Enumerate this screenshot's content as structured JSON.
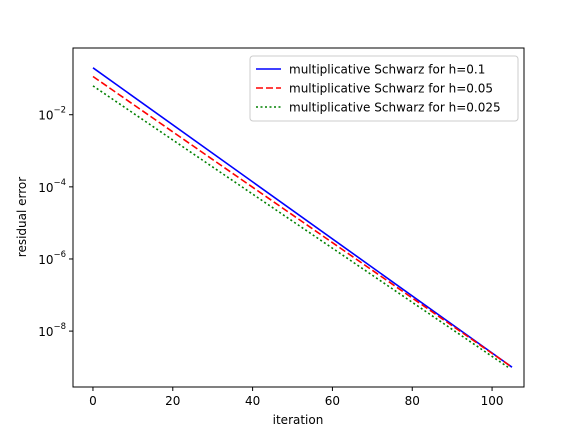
{
  "chart_data": {
    "type": "line",
    "xlabel": "iteration",
    "ylabel": "residual error",
    "xlim": [
      -5,
      108
    ],
    "ylim_log10": [
      -9.55,
      -0.15
    ],
    "yscale": "log",
    "grid": false,
    "legend_position": "top-right",
    "x_ticks": [
      0,
      20,
      40,
      60,
      80,
      100
    ],
    "y_ticks": [
      {
        "exp": -2,
        "base": "10",
        "power": "-2"
      },
      {
        "exp": -4,
        "base": "10",
        "power": "-4"
      },
      {
        "exp": -6,
        "base": "10",
        "power": "-6"
      },
      {
        "exp": -8,
        "base": "10",
        "power": "-8"
      }
    ],
    "series": [
      {
        "name": "multiplicative Schwarz for h=0.1",
        "color": "#0000ff",
        "dash": "solid",
        "x": [
          0,
          105
        ],
        "y": [
          0.2,
          1e-09
        ]
      },
      {
        "name": "multiplicative Schwarz for h=0.05",
        "color": "#ff0000",
        "dash": "dashed",
        "x": [
          0,
          105
        ],
        "y": [
          0.115,
          1e-09
        ]
      },
      {
        "name": "multiplicative Schwarz for h=0.025",
        "color": "#008000",
        "dash": "dotted",
        "x": [
          0,
          104
        ],
        "y": [
          0.063,
          1e-09
        ]
      }
    ]
  }
}
